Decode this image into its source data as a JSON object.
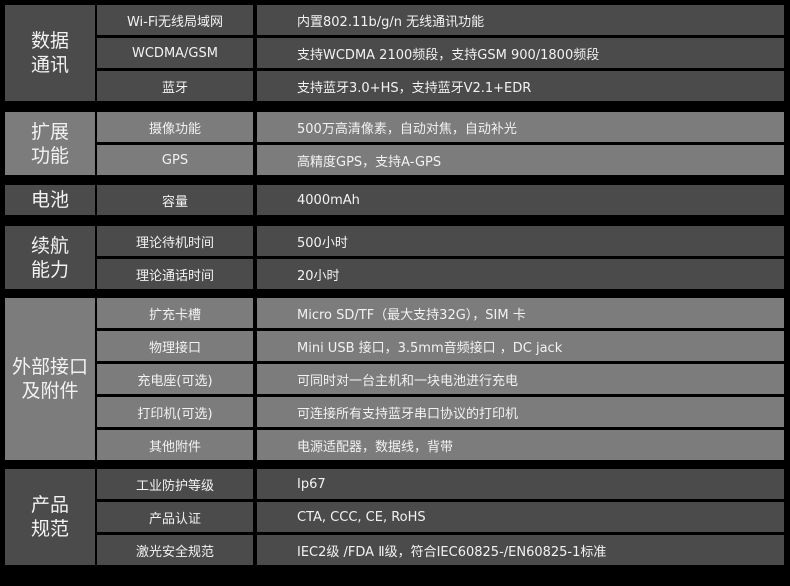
{
  "colors": {
    "background": "#000000",
    "dark_cell": "#4b4b4b",
    "light_cell": "#7c7c7c",
    "text": "#f2f2f2"
  },
  "groups": [
    {
      "category": "数据\n通讯",
      "tone": "dark",
      "rows": [
        {
          "label": "Wi-Fi无线局域网",
          "value": "内置802.11b/g/n 无线通讯功能"
        },
        {
          "label": "WCDMA/GSM",
          "value": "支持WCDMA 2100频段，支持GSM 900/1800频段"
        },
        {
          "label": "蓝牙",
          "value": "支持蓝牙3.0+HS，支持蓝牙V2.1+EDR"
        }
      ]
    },
    {
      "category": "扩展\n功能",
      "tone": "light",
      "rows": [
        {
          "label": "摄像功能",
          "value": "500万高清像素，自动对焦，自动补光"
        },
        {
          "label": "GPS",
          "value": "高精度GPS，支持A-GPS"
        }
      ]
    },
    {
      "category": "电池",
      "tone": "dark",
      "rows": [
        {
          "label": "容量",
          "value": "4000mAh"
        }
      ]
    },
    {
      "category": "续航\n能力",
      "tone": "dark",
      "rows": [
        {
          "label": "理论待机时间",
          "value": "500小时"
        },
        {
          "label": "理论通话时间",
          "value": "20小时"
        }
      ]
    },
    {
      "category": "外部接口\n及附件",
      "tone": "light",
      "rows": [
        {
          "label": "扩充卡槽",
          "value": "Micro SD/TF（最大支持32G），SIM 卡"
        },
        {
          "label": "物理接口",
          "value": "Mini USB 接口，3.5mm音频接口 ，DC jack"
        },
        {
          "label": "充电座(可选)",
          "value": "可同时对一台主机和一块电池进行充电"
        },
        {
          "label": "打印机(可选)",
          "value": "可连接所有支持蓝牙串口协议的打印机"
        },
        {
          "label": "其他附件",
          "value": "电源适配器，数据线，背带"
        }
      ]
    },
    {
      "category": "产品\n规范",
      "tone": "dark",
      "rows": [
        {
          "label": "工业防护等级",
          "value": "Ip67"
        },
        {
          "label": "产品认证",
          "value": "CTA, CCC, CE, RoHS"
        },
        {
          "label": "激光安全规范",
          "value": "IEC2级 /FDA Ⅱ级，符合IEC60825-/EN60825-1标准"
        }
      ]
    }
  ]
}
